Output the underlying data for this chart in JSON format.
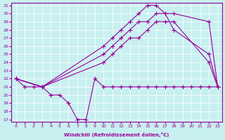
{
  "xlabel": "Windchill (Refroidissement éolien,°C)",
  "bg_color": "#c8f0f0",
  "line_color": "#990099",
  "grid_color": "#ffffff",
  "xmin": 0,
  "xmax": 23,
  "ymin": 17,
  "ymax": 31,
  "yticks": [
    17,
    18,
    19,
    20,
    21,
    22,
    23,
    24,
    25,
    26,
    27,
    28,
    29,
    30,
    31
  ],
  "xticks": [
    0,
    1,
    2,
    3,
    4,
    5,
    6,
    7,
    8,
    9,
    10,
    11,
    12,
    13,
    14,
    15,
    16,
    17,
    18,
    19,
    20,
    21,
    22,
    23
  ],
  "curve1_x": [
    0,
    1,
    2,
    3,
    4,
    5,
    6,
    7,
    8,
    9,
    10,
    11,
    12,
    13,
    14,
    15,
    16,
    17,
    18,
    19,
    20,
    21,
    22,
    23
  ],
  "curve1_y": [
    22,
    21,
    21,
    21,
    20,
    20,
    19,
    17,
    17,
    22,
    21,
    21,
    21,
    21,
    21,
    21,
    21,
    21,
    21,
    21,
    21,
    21,
    21,
    21
  ],
  "curve2_x": [
    0,
    3,
    10,
    11,
    12,
    13,
    14,
    15,
    16,
    17,
    18,
    22,
    23
  ],
  "curve2_y": [
    22,
    21,
    24,
    25,
    26,
    27,
    27,
    28,
    29,
    29,
    29,
    24,
    21
  ],
  "curve3_x": [
    0,
    3,
    10,
    11,
    12,
    13,
    14,
    15,
    16,
    17,
    18,
    22,
    23
  ],
  "curve3_y": [
    22,
    21,
    26,
    27,
    28,
    29,
    30,
    31,
    31,
    30,
    30,
    29,
    21
  ],
  "curve4_x": [
    0,
    3,
    10,
    11,
    12,
    13,
    14,
    15,
    16,
    17,
    18,
    22,
    23
  ],
  "curve4_y": [
    22,
    21,
    25,
    26,
    27,
    28,
    29,
    29,
    30,
    30,
    28,
    25,
    21
  ]
}
